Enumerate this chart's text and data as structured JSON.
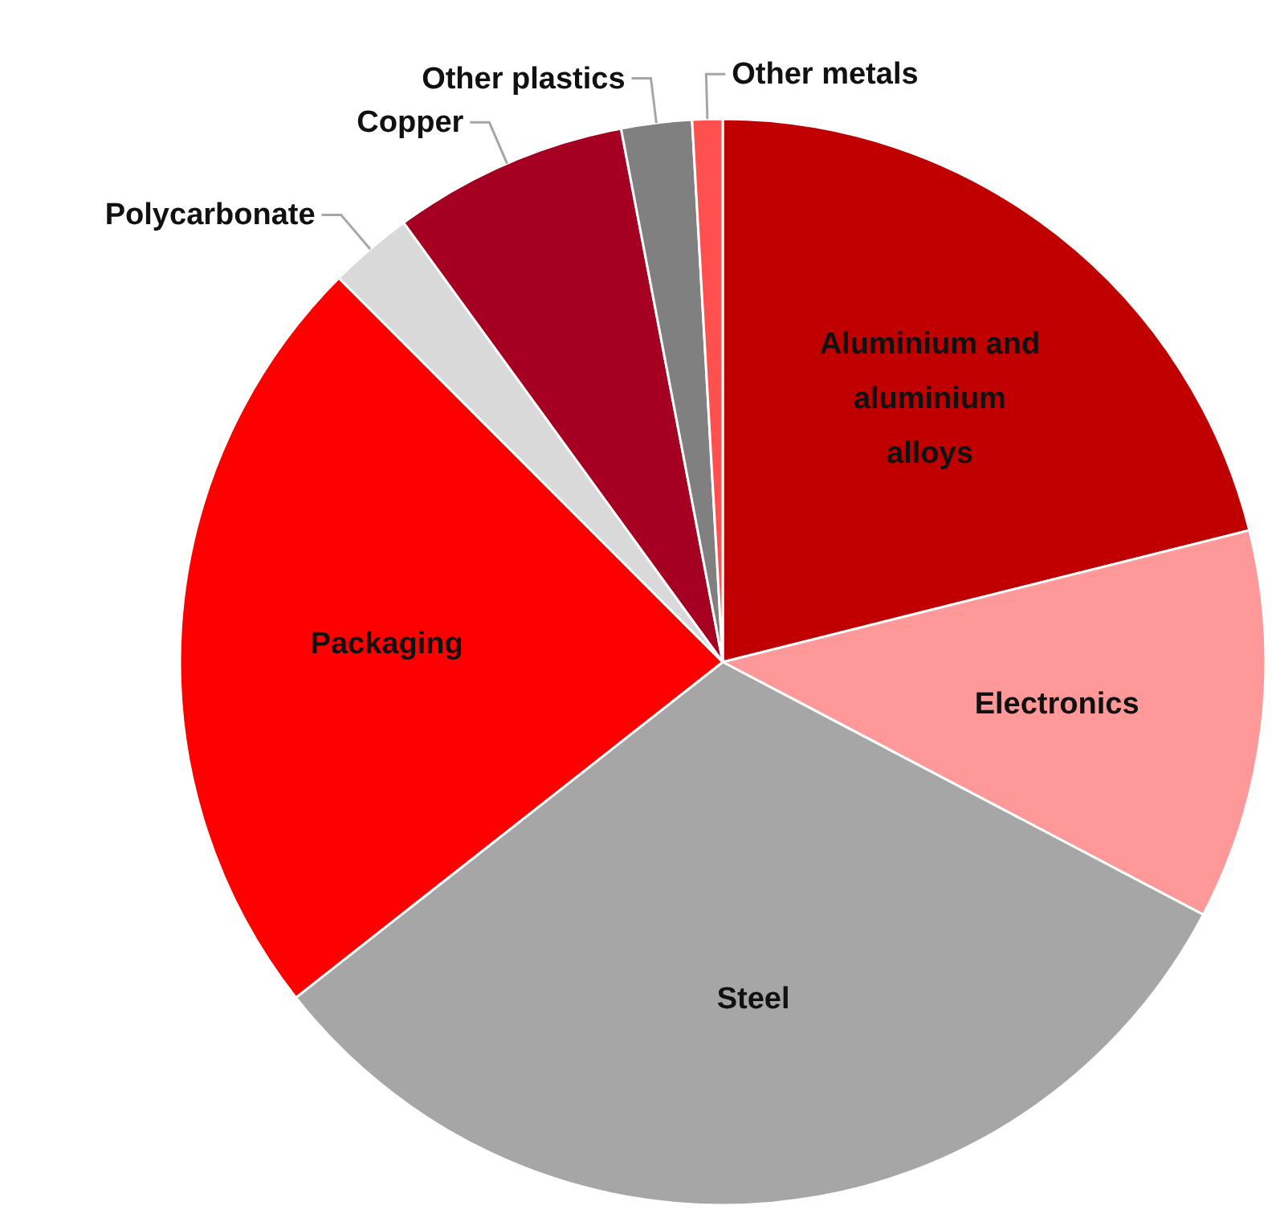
{
  "chart_data": {
    "type": "pie",
    "categories": [
      "Aluminium and aluminium alloys",
      "Electronics",
      "Steel",
      "Packaging",
      "Polycarbonate",
      "Copper",
      "Other plastics",
      "Other metals"
    ],
    "values": [
      21.1,
      11.6,
      31.7,
      23.1,
      2.5,
      7.0,
      2.1,
      0.9
    ],
    "colors": [
      "#c00000",
      "#ff9999",
      "#a6a6a6",
      "#ff0000",
      "#d9d9d9",
      "#a50021",
      "#808080",
      "#ff5050"
    ]
  }
}
